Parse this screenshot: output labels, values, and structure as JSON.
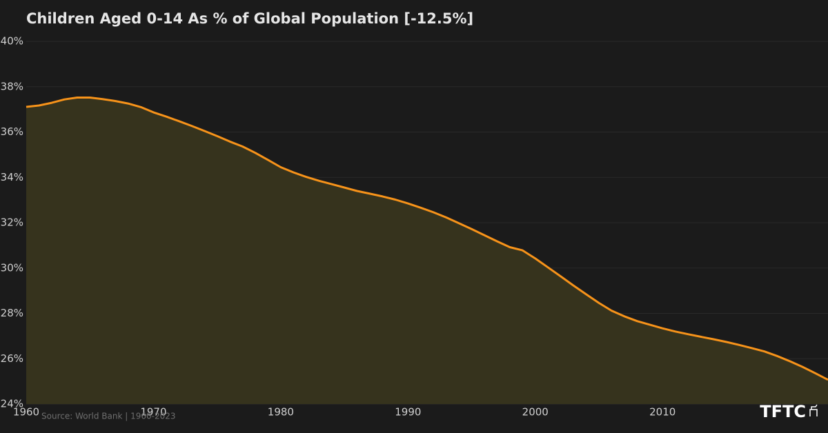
{
  "chart_data": {
    "type": "area",
    "title": "Children Aged 0-14 As % of Global Population  [-12.5%]",
    "source": "Source: World Bank | 1960-2023",
    "logo": "TFTC",
    "x": [
      1960,
      1961,
      1962,
      1963,
      1964,
      1965,
      1966,
      1967,
      1968,
      1969,
      1970,
      1971,
      1972,
      1973,
      1974,
      1975,
      1976,
      1977,
      1978,
      1979,
      1980,
      1981,
      1982,
      1983,
      1984,
      1985,
      1986,
      1987,
      1988,
      1989,
      1990,
      1991,
      1992,
      1993,
      1994,
      1995,
      1996,
      1997,
      1998,
      1999,
      2000,
      2001,
      2002,
      2003,
      2004,
      2005,
      2006,
      2007,
      2008,
      2009,
      2010,
      2011,
      2012,
      2013,
      2014,
      2015,
      2016,
      2017,
      2018,
      2019,
      2020,
      2021,
      2022,
      2023
    ],
    "series": [
      {
        "color": "#f7931a",
        "fill": "#36331d",
        "values": [
          37.11,
          37.17,
          37.29,
          37.44,
          37.52,
          37.52,
          37.45,
          37.37,
          37.26,
          37.1,
          36.87,
          36.68,
          36.48,
          36.27,
          36.05,
          35.82,
          35.58,
          35.36,
          35.08,
          34.77,
          34.45,
          34.22,
          34.02,
          33.85,
          33.7,
          33.55,
          33.4,
          33.28,
          33.16,
          33.02,
          32.85,
          32.66,
          32.46,
          32.23,
          31.98,
          31.72,
          31.45,
          31.18,
          30.92,
          30.78,
          30.42,
          30.03,
          29.63,
          29.23,
          28.84,
          28.46,
          28.12,
          27.87,
          27.66,
          27.5,
          27.34,
          27.2,
          27.08,
          26.97,
          26.86,
          26.74,
          26.61,
          26.47,
          26.32,
          26.12,
          25.89,
          25.64,
          25.36,
          25.07
        ]
      }
    ],
    "xlim": [
      1960,
      2023
    ],
    "xticks": [
      1960,
      1970,
      1980,
      1990,
      2000,
      2010
    ],
    "ylim": [
      24,
      40
    ],
    "yticks": [
      {
        "value": 24,
        "label": "24%"
      },
      {
        "value": 26,
        "label": "26%"
      },
      {
        "value": 28,
        "label": "28%"
      },
      {
        "value": 30,
        "label": "30%"
      },
      {
        "value": 32,
        "label": "32%"
      },
      {
        "value": 34,
        "label": "34%"
      },
      {
        "value": 36,
        "label": "36%"
      },
      {
        "value": 38,
        "label": "38%"
      },
      {
        "value": 40,
        "label": "40%"
      }
    ],
    "grid": true
  }
}
